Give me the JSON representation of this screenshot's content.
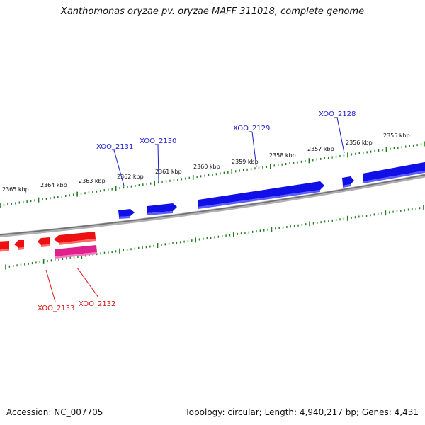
{
  "title": "Xanthomonas oryzae pv. oryzae MAFF 311018, complete genome",
  "footer": {
    "accession": "Accession: NC_007705",
    "summary": "Topology: circular; Length: 4,940,217 bp; Genes: 4,431"
  },
  "colors": {
    "backbone": "#808080",
    "forward_gene": "#1010e6",
    "reverse_gene": "#ee1010",
    "pseudo_gene": "#e0208c",
    "tick": "#1f7a1f",
    "forward_label": "#1a1acc",
    "reverse_label": "#d41414"
  },
  "ticks": [
    {
      "label": "2355 kbp"
    },
    {
      "label": "2356 kbp"
    },
    {
      "label": "2357 kbp"
    },
    {
      "label": "2358 kbp"
    },
    {
      "label": "2359 kbp"
    },
    {
      "label": "2360 kbp"
    },
    {
      "label": "2361 kbp"
    },
    {
      "label": "2362 kbp"
    },
    {
      "label": "2363 kbp"
    },
    {
      "label": "2364 kbp"
    },
    {
      "label": "2365 kbp"
    }
  ],
  "gene_labels": [
    {
      "name": "XOO_2128",
      "strand": "forward"
    },
    {
      "name": "XOO_2129",
      "strand": "forward"
    },
    {
      "name": "XOO_2130",
      "strand": "forward"
    },
    {
      "name": "XOO_2131",
      "strand": "forward"
    },
    {
      "name": "XOO_2132",
      "strand": "reverse"
    },
    {
      "name": "XOO_2133",
      "strand": "reverse"
    }
  ]
}
